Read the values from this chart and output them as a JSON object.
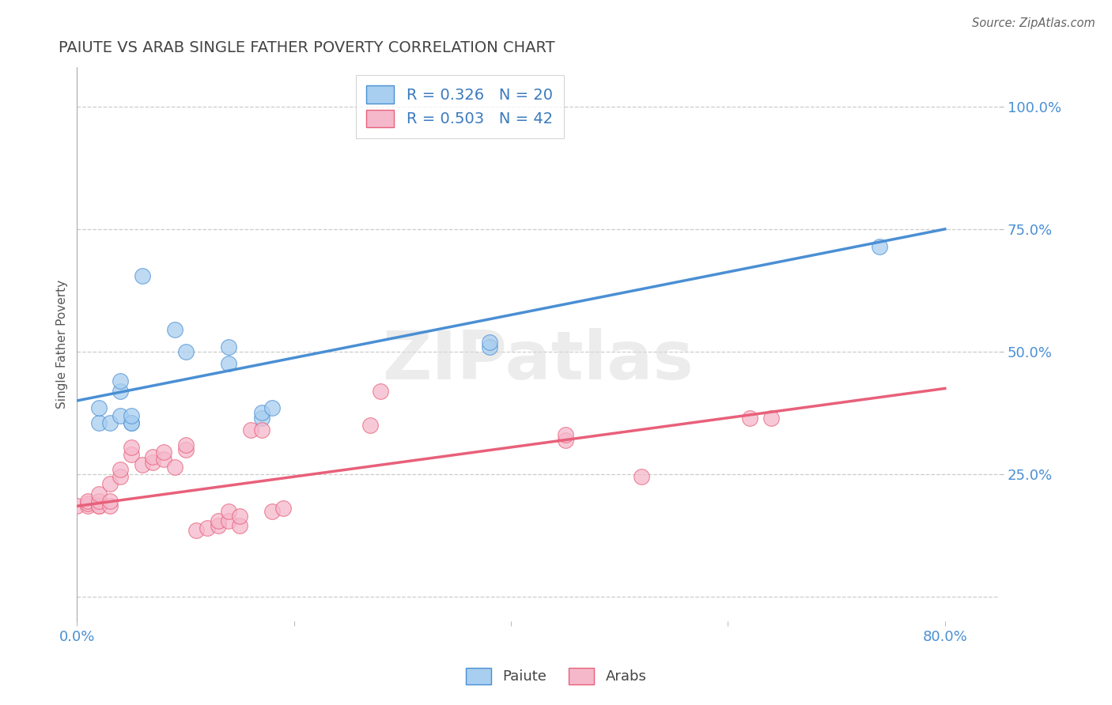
{
  "title": "PAIUTE VS ARAB SINGLE FATHER POVERTY CORRELATION CHART",
  "source": "Source: ZipAtlas.com",
  "ylabel_label": "Single Father Poverty",
  "xlim": [
    0.0,
    0.85
  ],
  "ylim": [
    -0.05,
    1.08
  ],
  "paiute_R": 0.326,
  "paiute_N": 20,
  "arab_R": 0.503,
  "arab_N": 42,
  "paiute_color": "#a8cef0",
  "arab_color": "#f5b8cb",
  "paiute_line_color": "#4a8fd4",
  "arab_line_color": "#e8607a",
  "paiute_line": [
    0.0,
    0.4,
    0.8,
    0.75
  ],
  "arab_line": [
    0.0,
    0.185,
    0.8,
    0.425
  ],
  "paiute_x": [
    0.02,
    0.02,
    0.04,
    0.05,
    0.06,
    0.09,
    0.1,
    0.14,
    0.14,
    0.17,
    0.17,
    0.18,
    0.38,
    0.38,
    0.74,
    0.03,
    0.04,
    0.04,
    0.05,
    0.05
  ],
  "paiute_y": [
    0.355,
    0.385,
    0.42,
    0.355,
    0.655,
    0.545,
    0.5,
    0.475,
    0.51,
    0.365,
    0.375,
    0.385,
    0.51,
    0.52,
    0.715,
    0.355,
    0.37,
    0.44,
    0.355,
    0.37
  ],
  "arab_x": [
    0.0,
    0.01,
    0.01,
    0.01,
    0.02,
    0.02,
    0.02,
    0.02,
    0.03,
    0.03,
    0.03,
    0.04,
    0.04,
    0.05,
    0.05,
    0.06,
    0.07,
    0.07,
    0.08,
    0.08,
    0.09,
    0.1,
    0.1,
    0.11,
    0.12,
    0.13,
    0.13,
    0.14,
    0.14,
    0.15,
    0.15,
    0.16,
    0.17,
    0.18,
    0.19,
    0.27,
    0.28,
    0.45,
    0.45,
    0.52,
    0.62,
    0.64
  ],
  "arab_y": [
    0.185,
    0.185,
    0.19,
    0.195,
    0.185,
    0.185,
    0.195,
    0.21,
    0.185,
    0.195,
    0.23,
    0.245,
    0.26,
    0.29,
    0.305,
    0.27,
    0.275,
    0.285,
    0.28,
    0.295,
    0.265,
    0.3,
    0.31,
    0.135,
    0.14,
    0.145,
    0.155,
    0.155,
    0.175,
    0.145,
    0.165,
    0.34,
    0.34,
    0.175,
    0.18,
    0.35,
    0.42,
    0.32,
    0.33,
    0.245,
    0.365,
    0.365
  ],
  "grid_color": "#cccccc",
  "background_color": "#ffffff",
  "title_color": "#444444",
  "legend_label_color": "#3a7abf",
  "axis_label_color": "#4a8fd4",
  "watermark_text": "ZIPatlas",
  "y_ticks_right": [
    1.0,
    0.75,
    0.5,
    0.25
  ],
  "y_tick_labels_right": [
    "100.0%",
    "75.0%",
    "50.0%",
    "25.0%"
  ],
  "x_ticks": [
    0.0,
    0.2,
    0.4,
    0.6,
    0.8
  ]
}
